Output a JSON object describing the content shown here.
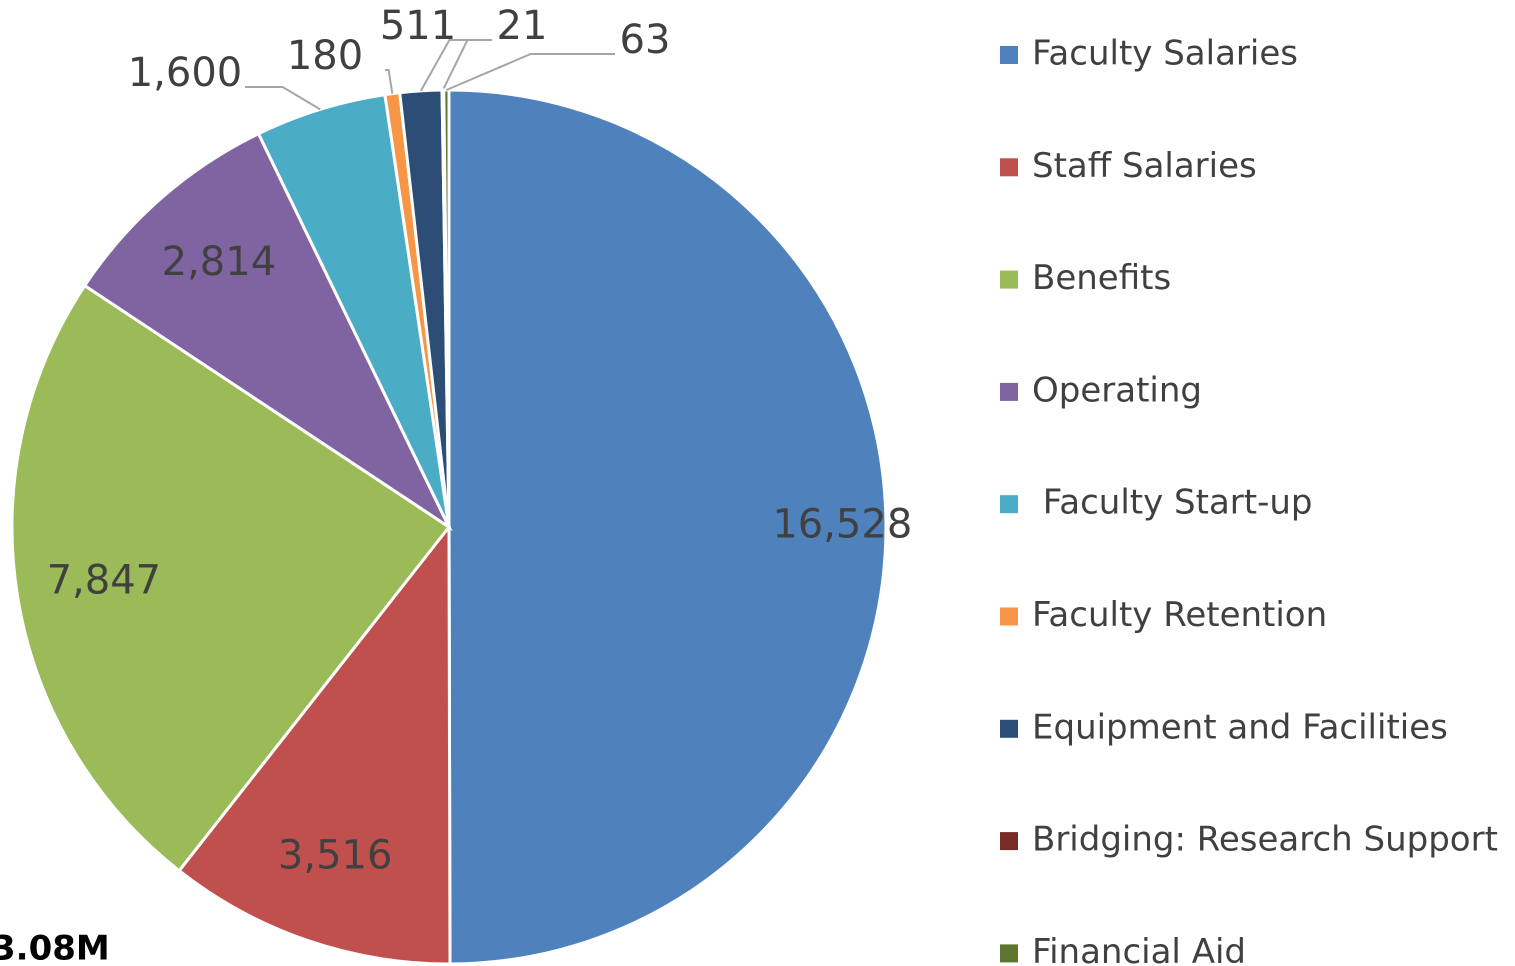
{
  "chart_data": {
    "type": "pie",
    "categories": [
      "Faculty Salaries",
      "Staff Salaries",
      "Benefits",
      "Operating",
      " Faculty Start-up",
      "Faculty Retention",
      "Equipment and Facilities",
      "Bridging: Research Support",
      "Financial Aid"
    ],
    "values": [
      16528,
      3516,
      7847,
      2814,
      1600,
      180,
      511,
      21,
      63
    ],
    "value_labels": [
      "16,528",
      "3,516",
      "7,847",
      "2,814",
      "1,600",
      "180",
      "511",
      "21",
      "63"
    ],
    "colors": [
      "#4f81bd",
      "#c0504d",
      "#9bbb59",
      "#8064a2",
      "#4bacc6",
      "#f79646",
      "#2c4d75",
      "#772c2a",
      "#5f7530"
    ],
    "legend": "right",
    "annotation": "3.08M"
  }
}
